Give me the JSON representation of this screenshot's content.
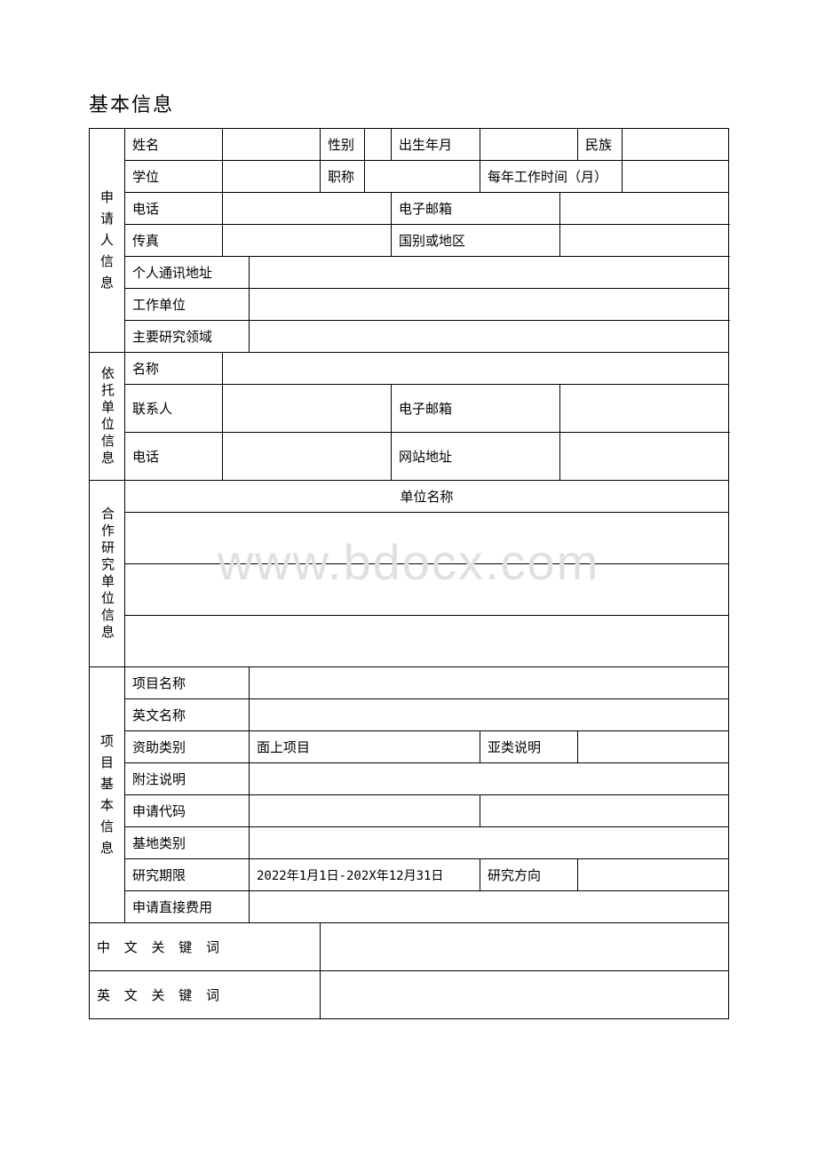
{
  "page": {
    "title": "基本信息",
    "watermark": "www.bdocx.com"
  },
  "sections": {
    "applicant": {
      "header": "申\n请\n人\n信\n息",
      "name_label": "姓名",
      "gender_label": "性别",
      "birth_label": "出生年月",
      "ethnic_label": "民族",
      "degree_label": "学位",
      "title_label": "职称",
      "worktime_label": "每年工作时间（月）",
      "phone_label": "电话",
      "email_label": "电子邮箱",
      "fax_label": "传真",
      "country_label": "国别或地区",
      "address_label": "个人通讯地址",
      "workunit_label": "工作单位",
      "research_label": "主要研究领域"
    },
    "host": {
      "header": "依托单位信息",
      "name_label": "名称",
      "contact_label": "联系人",
      "email_label": "电子邮箱",
      "phone_label": "电话",
      "website_label": "网站地址"
    },
    "partner": {
      "header": "合作研究单位信息",
      "unitname_label": "单位名称"
    },
    "project": {
      "header": "项\n目\n基\n本\n信\n息",
      "name_label": "项目名称",
      "enname_label": "英文名称",
      "fundtype_label": "资助类别",
      "fundtype_value": "面上项目",
      "subtype_label": "亚类说明",
      "note_label": "附注说明",
      "code_label": "申请代码",
      "basetype_label": "基地类别",
      "period_label": "研究期限",
      "period_value": "2022年1月1日-202X年12月31日",
      "direction_label": "研究方向",
      "directfee_label": "申请直接费用"
    },
    "keywords": {
      "cn_label": "中 文 关 键 词",
      "en_label": "英 文 关 键 词"
    }
  }
}
